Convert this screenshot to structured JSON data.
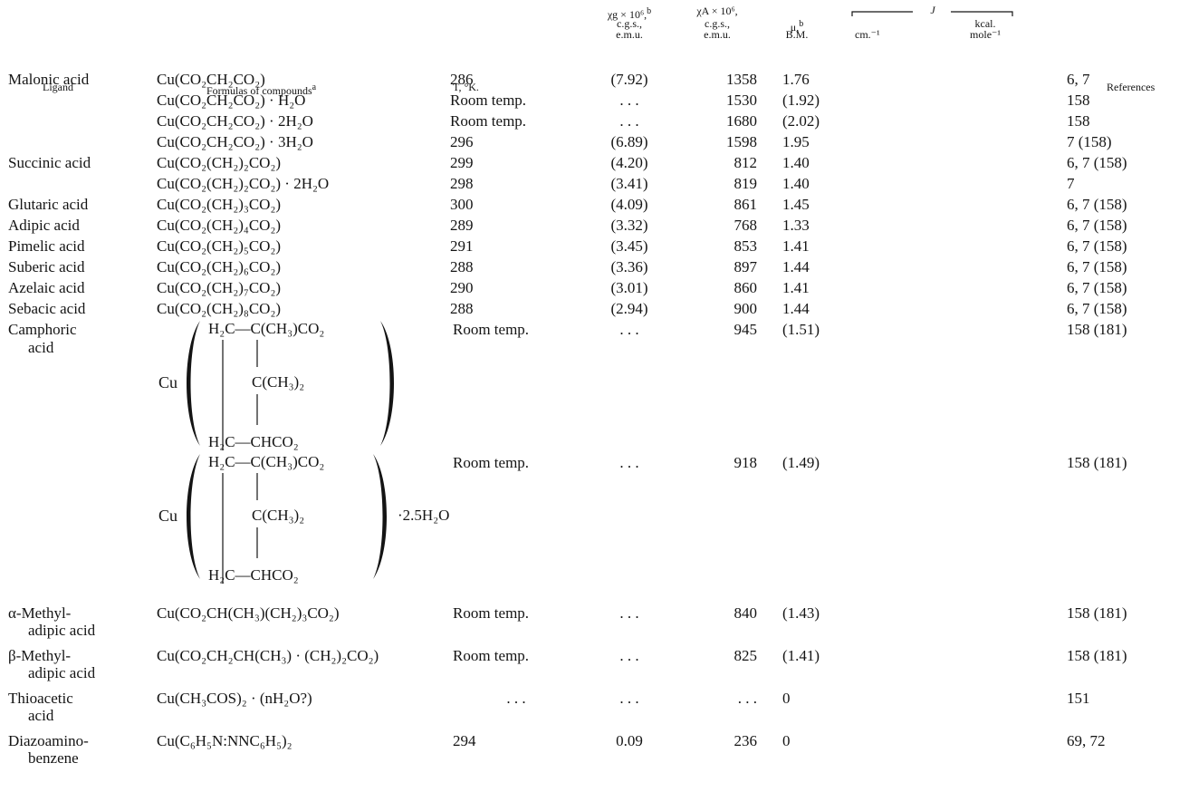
{
  "header": {
    "ligand": "Ligand",
    "formulas": "Formulas of compounds",
    "formulas_sup": "a",
    "temp": "T, °K.",
    "chi_g_l1": "χg × 10⁶,",
    "chi_g_sup": "b",
    "chi_g_l2": "c.g.s.,",
    "chi_g_l3": "e.m.u.",
    "chi_a_l1": "χA × 10⁶,",
    "chi_a_l2": "c.g.s.,",
    "chi_a_l3": "e.m.u.",
    "mu_l1": "μ,",
    "mu_sup": "b",
    "mu_l2": "B.M.",
    "j": "J",
    "cm": "cm.⁻¹",
    "kcal_l1": "kcal.",
    "kcal_l2": "mole⁻¹",
    "refs": "References"
  },
  "rows": [
    {
      "ligand": "Malonic acid",
      "formula": "Cu(CO₂CH₂CO₂)",
      "t": "286",
      "chig": "(7.92)",
      "chia": "1358",
      "mu": "1.76",
      "ref": "6, 7"
    },
    {
      "ligand": "",
      "formula": "Cu(CO₂CH₂CO₂) · H₂O",
      "t": "Room temp.",
      "chig": ". . .",
      "chia": "1530",
      "mu": "(1.92)",
      "ref": "158"
    },
    {
      "ligand": "",
      "formula": "Cu(CO₂CH₂CO₂) · 2H₂O",
      "t": "Room temp.",
      "chig": ". . .",
      "chia": "1680",
      "mu": "(2.02)",
      "ref": "158"
    },
    {
      "ligand": "",
      "formula": "Cu(CO₂CH₂CO₂) · 3H₂O",
      "t": "296",
      "chig": "(6.89)",
      "chia": "1598",
      "mu": "1.95",
      "ref": "7 (158)"
    },
    {
      "ligand": "Succinic acid",
      "formula": "Cu(CO₂(CH₂)₂CO₂)",
      "t": "299",
      "chig": "(4.20)",
      "chia": "812",
      "mu": "1.40",
      "ref": "6, 7 (158)"
    },
    {
      "ligand": "",
      "formula": "Cu(CO₂(CH₂)₂CO₂) · 2H₂O",
      "t": "298",
      "chig": "(3.41)",
      "chia": "819",
      "mu": "1.40",
      "ref": "7"
    },
    {
      "ligand": "Glutaric acid",
      "formula": "Cu(CO₂(CH₂)₃CO₂)",
      "t": "300",
      "chig": "(4.09)",
      "chia": "861",
      "mu": "1.45",
      "ref": "6, 7 (158)"
    },
    {
      "ligand": "Adipic acid",
      "formula": "Cu(CO₂(CH₂)₄CO₂)",
      "t": "289",
      "chig": "(3.32)",
      "chia": "768",
      "mu": "1.33",
      "ref": "6, 7 (158)"
    },
    {
      "ligand": "Pimelic acid",
      "formula": "Cu(CO₂(CH₂)₅CO₂)",
      "t": "291",
      "chig": "(3.45)",
      "chia": "853",
      "mu": "1.41",
      "ref": "6, 7 (158)"
    },
    {
      "ligand": "Suberic acid",
      "formula": "Cu(CO₂(CH₂)₆CO₂)",
      "t": "288",
      "chig": "(3.36)",
      "chia": "897",
      "mu": "1.44",
      "ref": "6, 7 (158)"
    },
    {
      "ligand": "Azelaic acid",
      "formula": "Cu(CO₂(CH₂)₇CO₂)",
      "t": "290",
      "chig": "(3.01)",
      "chia": "860",
      "mu": "1.41",
      "ref": "6, 7 (158)"
    },
    {
      "ligand": "Sebacic acid",
      "formula": "Cu(CO₂(CH₂)₈CO₂)",
      "t": "288",
      "chig": "(2.94)",
      "chia": "900",
      "mu": "1.44",
      "ref": "6, 7 (158)"
    }
  ],
  "camphoric": {
    "ligand_l1": "Camphoric",
    "ligand_l2": "acid",
    "entries": [
      {
        "t": "Room temp.",
        "chig": ". . .",
        "chia": "945",
        "mu": "(1.51)",
        "ref": "158 (181)",
        "hydrate": ""
      },
      {
        "t": "Room temp.",
        "chig": ". . .",
        "chia": "918",
        "mu": "(1.49)",
        "ref": "158 (181)",
        "hydrate": "·2.5H₂O"
      }
    ],
    "cu": "Cu",
    "top": "H₂C—C(CH₃)CO₂",
    "mid": "C(CH₃)₂",
    "bottom": "H₂C—CHCO₂"
  },
  "rows2": [
    {
      "ligand_l1": "α-Methyl-",
      "ligand_l2": "adipic acid",
      "formula": "Cu(CO₂CH(CH₃)(CH₂)₃CO₂)",
      "t": "Room temp.",
      "chig": ". . .",
      "chia": "840",
      "mu": "(1.43)",
      "ref": "158 (181)"
    },
    {
      "ligand_l1": "β-Methyl-",
      "ligand_l2": "adipic acid",
      "formula": "Cu(CO₂CH₂CH(CH₃) · (CH₂)₂CO₂)",
      "t": "Room temp.",
      "chig": ". . .",
      "chia": "825",
      "mu": "(1.41)",
      "ref": "158 (181)"
    },
    {
      "ligand_l1": "Thioacetic",
      "ligand_l2": "acid",
      "formula": "Cu(CH₃COS)₂ · (nH₂O?)",
      "t": ". . .",
      "chig": ". . .",
      "chia": ". . .",
      "mu": "0",
      "ref": "151"
    },
    {
      "ligand_l1": "Diazoamino-",
      "ligand_l2": "benzene",
      "formula": "Cu(C₆H₅N:NNC₆H₅)₂",
      "t": "294",
      "chig": "0.09",
      "chia": "236",
      "mu": "0",
      "ref": "69, 72"
    }
  ]
}
